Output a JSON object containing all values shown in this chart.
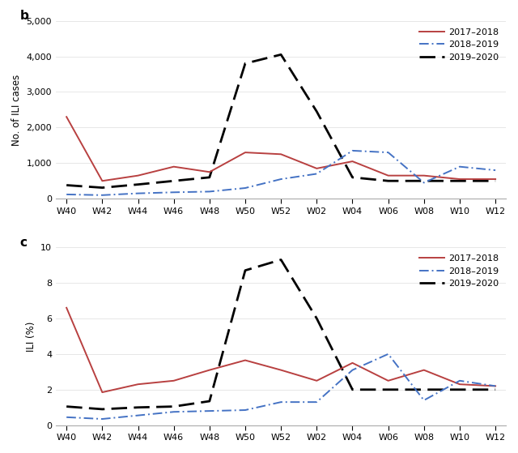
{
  "x_labels": [
    "W40",
    "W42",
    "W44",
    "W46",
    "W48",
    "W50",
    "W52",
    "W02",
    "W04",
    "W06",
    "W08",
    "W10",
    "W12"
  ],
  "panel_b": {
    "b_2017": [
      2300,
      500,
      650,
      900,
      750,
      1300,
      1250,
      850,
      1050,
      650,
      650,
      550,
      550
    ],
    "b_2018": [
      120,
      100,
      150,
      180,
      200,
      300,
      550,
      700,
      1350,
      1300,
      450,
      900,
      800
    ],
    "b_2019": [
      380,
      310,
      400,
      500,
      600,
      3800,
      4050,
      2450,
      600,
      500,
      500,
      500,
      500
    ],
    "ylabel": "No. of ILI cases",
    "ylim": [
      0,
      5000
    ],
    "yticks": [
      0,
      1000,
      2000,
      3000,
      4000,
      5000
    ],
    "panel_label": "b"
  },
  "panel_c": {
    "c_2017": [
      6.6,
      1.85,
      2.3,
      2.5,
      3.1,
      3.65,
      3.1,
      2.5,
      3.5,
      2.5,
      3.1,
      2.3,
      2.2
    ],
    "c_2018": [
      0.45,
      0.35,
      0.55,
      0.75,
      0.8,
      0.85,
      1.3,
      1.3,
      3.1,
      4.0,
      1.4,
      2.5,
      2.2
    ],
    "c_2019": [
      1.05,
      0.9,
      1.0,
      1.05,
      1.35,
      8.7,
      9.3,
      6.0,
      2.0,
      2.0,
      2.0,
      2.0,
      2.0
    ],
    "ylabel": "ILI (%)",
    "ylim": [
      0,
      10
    ],
    "yticks": [
      0,
      2,
      4,
      6,
      8,
      10
    ],
    "panel_label": "c"
  },
  "color_2017_2018": "#b84040",
  "color_2018_2019": "#4472c4",
  "color_2019_2020": "#000000",
  "legend_labels": [
    "2017–2018",
    "2018–2019",
    "2019–2020"
  ],
  "background_color": "#ffffff"
}
